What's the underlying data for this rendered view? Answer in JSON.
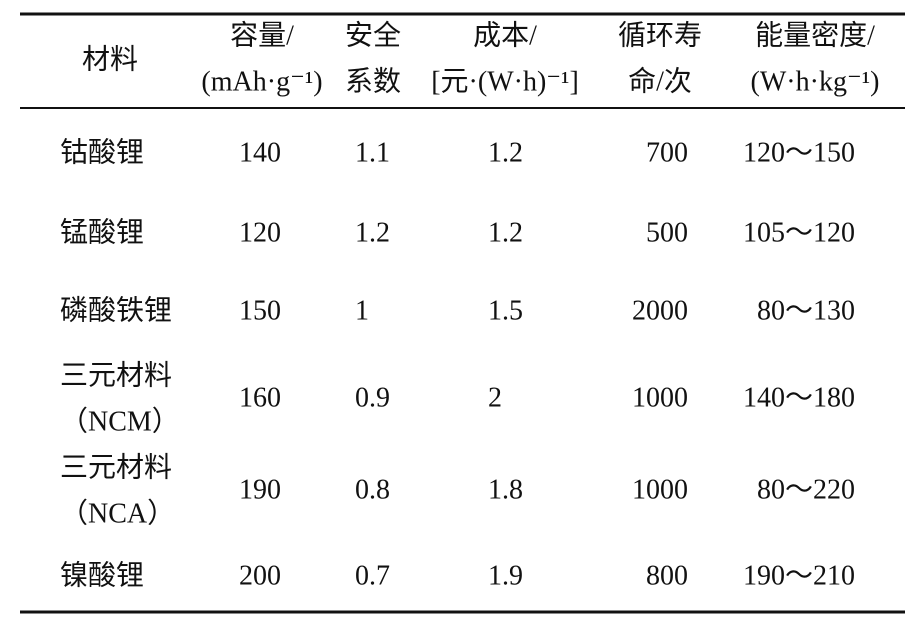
{
  "table": {
    "header": [
      [
        "材料"
      ],
      [
        "容量/",
        "(mAh·g⁻¹)"
      ],
      [
        "安全",
        "系数"
      ],
      [
        "成本/",
        "[元·(W·h)⁻¹]"
      ],
      [
        "循环寿",
        "命/次"
      ],
      [
        "能量密度/",
        "(W·h·kg⁻¹)"
      ]
    ],
    "rows": [
      [
        [
          "钴酸锂"
        ],
        "140",
        "1.1",
        "1.2",
        "700",
        "120～150"
      ],
      [
        [
          "锰酸锂"
        ],
        "120",
        "1.2",
        "1.2",
        "500",
        "105～120"
      ],
      [
        [
          "磷酸铁锂"
        ],
        "150",
        "1",
        "1.5",
        "2000",
        "80～130"
      ],
      [
        [
          "三元材料",
          "（NCM）"
        ],
        "160",
        "0.9",
        "2",
        "1000",
        "140～180"
      ],
      [
        [
          "三元材料",
          "（NCA）"
        ],
        "190",
        "0.8",
        "1.8",
        "1000",
        "80～220"
      ],
      [
        [
          "镍酸锂"
        ],
        "200",
        "0.7",
        "1.9",
        "800",
        "190～210"
      ]
    ]
  }
}
